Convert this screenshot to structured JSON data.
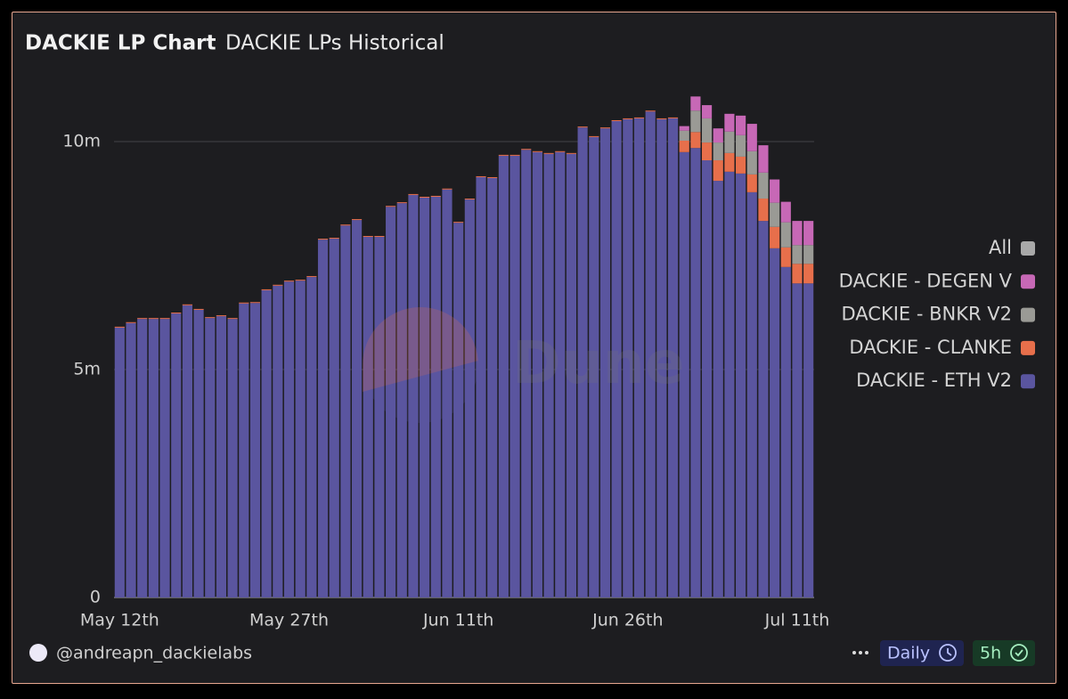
{
  "chart_data": {
    "type": "stacked_bar",
    "title": "DACKIE LP Chart",
    "subtitle": "DACKIE LPs Historical",
    "watermark": "Dune",
    "author": "@andreapn_dackielabs",
    "refresh": "Daily",
    "age": "5h",
    "categories": [
      "May 12th",
      null,
      null,
      null,
      null,
      null,
      null,
      null,
      null,
      null,
      null,
      null,
      null,
      null,
      null,
      "May 27th",
      null,
      null,
      null,
      null,
      null,
      null,
      null,
      null,
      null,
      null,
      null,
      null,
      null,
      null,
      "Jun 11th",
      null,
      null,
      null,
      null,
      null,
      null,
      null,
      null,
      null,
      null,
      null,
      null,
      null,
      null,
      "Jun 26th",
      null,
      null,
      null,
      null,
      null,
      null,
      null,
      null,
      null,
      null,
      null,
      null,
      null,
      null,
      "Jul 11th",
      null
    ],
    "ylim": [
      0,
      11200000
    ],
    "yticks": [
      0,
      {
        "value": 5000000,
        "label": "5m"
      },
      {
        "value": 10000000,
        "label": "10m"
      }
    ],
    "grid": true,
    "legend": "right",
    "series": [
      {
        "name": "All",
        "color": "#a9a9a9",
        "values": [
          null,
          null,
          null,
          null,
          null,
          null,
          null,
          null,
          null,
          null,
          null,
          null,
          null,
          null,
          null,
          null,
          null,
          null,
          null,
          null,
          null,
          null,
          null,
          null,
          null,
          null,
          null,
          null,
          null,
          null,
          null,
          null,
          null,
          null,
          null,
          null,
          null,
          null,
          null,
          null,
          null,
          null,
          null,
          null,
          null,
          null,
          null,
          null,
          null,
          null,
          null,
          null,
          null,
          null,
          null,
          null,
          null,
          null,
          null,
          null,
          null,
          null
        ]
      },
      {
        "name": "DACKIE - DEGEN V",
        "color": "#c768b6",
        "values": [
          0,
          0,
          0,
          0,
          0,
          0,
          0,
          0,
          0,
          0,
          0,
          0,
          0,
          0,
          0,
          0,
          0,
          0,
          0,
          0,
          0,
          0,
          0,
          0,
          0,
          0,
          0,
          0,
          0,
          0,
          0,
          0,
          0,
          0,
          0,
          0,
          0,
          0,
          0,
          0,
          0,
          0,
          0,
          0,
          0,
          0,
          0,
          0,
          0,
          0,
          100000,
          310000,
          290000,
          310000,
          390000,
          430000,
          600000,
          600000,
          510000,
          450000,
          530000,
          530000
        ]
      },
      {
        "name": "DACKIE - BNKR V2",
        "color": "#9a9a95",
        "values": [
          0,
          0,
          0,
          0,
          0,
          0,
          0,
          0,
          0,
          0,
          0,
          0,
          0,
          0,
          0,
          0,
          0,
          0,
          0,
          0,
          0,
          0,
          0,
          0,
          0,
          0,
          0,
          0,
          0,
          0,
          0,
          0,
          0,
          0,
          0,
          0,
          0,
          0,
          0,
          0,
          0,
          0,
          0,
          0,
          0,
          0,
          0,
          0,
          0,
          0,
          220000,
          470000,
          530000,
          390000,
          470000,
          470000,
          510000,
          570000,
          530000,
          550000,
          410000,
          410000
        ]
      },
      {
        "name": "DACKIE - CLANKE",
        "color": "#e76f4b",
        "values": [
          20000,
          20000,
          20000,
          20000,
          20000,
          20000,
          20000,
          20000,
          20000,
          20000,
          20000,
          20000,
          20000,
          20000,
          20000,
          20000,
          20000,
          20000,
          20000,
          20000,
          20000,
          20000,
          20000,
          20000,
          20000,
          20000,
          20000,
          20000,
          20000,
          20000,
          20000,
          20000,
          20000,
          20000,
          20000,
          20000,
          20000,
          20000,
          20000,
          20000,
          20000,
          20000,
          20000,
          20000,
          20000,
          20000,
          20000,
          20000,
          20000,
          20000,
          250000,
          350000,
          390000,
          450000,
          410000,
          370000,
          390000,
          490000,
          470000,
          430000,
          430000,
          430000
        ]
      },
      {
        "name": "DACKIE - ETH V2",
        "color": "#5a559f",
        "values": [
          5920000,
          6020000,
          6110000,
          6110000,
          6110000,
          6230000,
          6410000,
          6310000,
          6130000,
          6170000,
          6110000,
          6450000,
          6460000,
          6740000,
          6840000,
          6930000,
          6950000,
          7030000,
          7850000,
          7870000,
          8160000,
          8280000,
          7910000,
          7910000,
          8570000,
          8650000,
          8830000,
          8770000,
          8790000,
          8950000,
          8220000,
          8730000,
          9220000,
          9200000,
          9690000,
          9690000,
          9820000,
          9770000,
          9730000,
          9770000,
          9730000,
          10310000,
          10100000,
          10290000,
          10450000,
          10490000,
          10510000,
          10660000,
          10490000,
          10510000,
          9770000,
          9860000,
          9590000,
          9140000,
          9340000,
          9300000,
          8890000,
          8260000,
          7660000,
          7250000,
          6890000,
          6890000
        ]
      }
    ]
  }
}
